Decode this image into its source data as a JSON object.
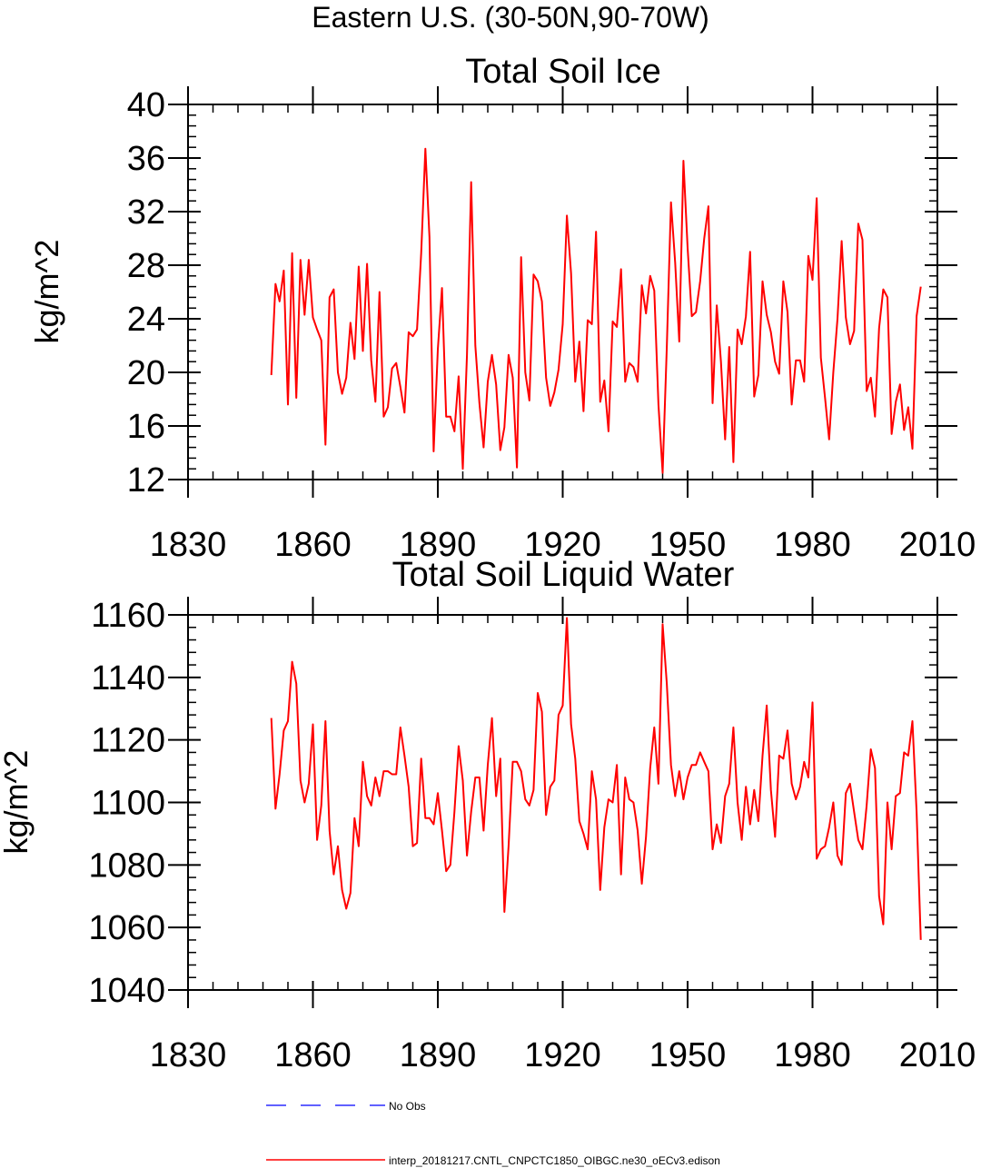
{
  "figure_title": "Eastern U.S. (30-50N,90-70W)",
  "legend": {
    "obs_label": "No Obs",
    "obs_color": "#2b2bff",
    "model_label": "interp_20181217.CNTL_CNPCTC1850_OIBGC.ne30_oECv3.edison",
    "model_color": "#ff0000"
  },
  "chart_data": [
    {
      "type": "line",
      "title": "Total Soil Ice",
      "ylabel": "kg/m^2",
      "xlabel": "",
      "xlim": [
        1830,
        2010
      ],
      "ylim": [
        12,
        40
      ],
      "xticks": [
        1830,
        1860,
        1890,
        1920,
        1950,
        1980,
        2010
      ],
      "yticks": [
        12,
        16,
        20,
        24,
        28,
        32,
        36,
        40
      ],
      "series": [
        {
          "name": "interp_20181217.CNTL_CNPCTC1850_OIBGC.ne30_oECv3.edison",
          "color": "#ff0000",
          "x_start": 1850,
          "x_step": 1,
          "values": [
            19.8,
            26.6,
            25.3,
            27.6,
            17.6,
            28.9,
            18.1,
            28.4,
            24.3,
            28.4,
            24.1,
            23.2,
            22.4,
            14.6,
            25.6,
            26.2,
            20.0,
            18.4,
            19.6,
            23.7,
            21.0,
            27.9,
            21.6,
            28.1,
            20.9,
            17.8,
            26.0,
            16.7,
            17.4,
            20.3,
            20.7,
            18.9,
            17.0,
            23.0,
            22.7,
            23.2,
            28.9,
            36.7,
            30.1,
            14.1,
            21.7,
            26.3,
            16.7,
            16.7,
            15.6,
            19.7,
            12.8,
            21.3,
            34.2,
            22.0,
            17.7,
            14.4,
            19.3,
            21.3,
            19.1,
            14.2,
            15.9,
            21.3,
            19.6,
            12.9,
            28.6,
            20.0,
            17.9,
            27.3,
            26.8,
            25.3,
            19.6,
            17.5,
            18.5,
            20.2,
            23.6,
            31.7,
            27.4,
            19.3,
            22.3,
            17.1,
            23.9,
            23.6,
            30.5,
            17.8,
            19.4,
            15.6,
            23.8,
            23.4,
            27.7,
            19.3,
            20.7,
            20.4,
            19.3,
            26.5,
            24.4,
            27.2,
            26.1,
            17.6,
            12.5,
            21.9,
            32.7,
            28.2,
            22.3,
            35.8,
            29.3,
            24.2,
            24.5,
            26.8,
            30.0,
            32.4,
            17.7,
            25.0,
            20.8,
            15.0,
            21.9,
            13.3,
            23.2,
            22.1,
            24.2,
            29.0,
            18.2,
            19.8,
            26.8,
            24.3,
            23.0,
            20.8,
            19.9,
            26.8,
            24.5,
            17.6,
            20.9,
            20.9,
            19.3,
            28.7,
            26.9,
            33.0,
            21.1,
            18.1,
            15.0,
            20.0,
            24.0,
            29.8,
            24.1,
            22.1,
            23.1,
            31.1,
            29.9,
            18.6,
            19.6,
            16.7,
            23.3,
            26.2,
            25.6,
            15.4,
            17.8,
            19.1,
            15.7,
            17.4,
            14.3,
            24.2,
            26.4
          ]
        }
      ]
    },
    {
      "type": "line",
      "title": "Total Soil Liquid Water",
      "ylabel": "kg/m^2",
      "xlabel": "",
      "xlim": [
        1830,
        2010
      ],
      "ylim": [
        1040,
        1160
      ],
      "xticks": [
        1830,
        1860,
        1890,
        1920,
        1950,
        1980,
        2010
      ],
      "yticks": [
        1040,
        1060,
        1080,
        1100,
        1120,
        1140,
        1160
      ],
      "series": [
        {
          "name": "interp_20181217.CNTL_CNPCTC1850_OIBGC.ne30_oECv3.edison",
          "color": "#ff0000",
          "x_start": 1850,
          "x_step": 1,
          "values": [
            1127,
            1098,
            1109,
            1123,
            1126,
            1145,
            1138,
            1107,
            1100,
            1106,
            1125,
            1088,
            1099,
            1126,
            1091,
            1077,
            1086,
            1072,
            1066,
            1071,
            1095,
            1086,
            1113,
            1102,
            1099,
            1108,
            1102,
            1110,
            1110,
            1109,
            1109,
            1124,
            1115,
            1105,
            1086,
            1087,
            1114,
            1095,
            1095,
            1093,
            1103,
            1091,
            1078,
            1080,
            1097,
            1118,
            1107,
            1083,
            1097,
            1108,
            1108,
            1091,
            1112,
            1127,
            1102,
            1114,
            1065,
            1086,
            1113,
            1113,
            1110,
            1101,
            1099,
            1104,
            1135,
            1129,
            1096,
            1105,
            1107,
            1128,
            1131,
            1159,
            1125,
            1114,
            1094,
            1090,
            1085,
            1110,
            1101,
            1072,
            1092,
            1101,
            1100,
            1112,
            1077,
            1108,
            1101,
            1100,
            1091,
            1074,
            1089,
            1111,
            1124,
            1106,
            1157,
            1138,
            1112,
            1102,
            1110,
            1101,
            1108,
            1112,
            1112,
            1116,
            1113,
            1110,
            1085,
            1093,
            1087,
            1102,
            1106,
            1124,
            1100,
            1088,
            1105,
            1093,
            1104,
            1094,
            1115,
            1131,
            1104,
            1089,
            1115,
            1114,
            1123,
            1106,
            1101,
            1105,
            1113,
            1108,
            1132,
            1082,
            1085,
            1086,
            1092,
            1100,
            1083,
            1080,
            1103,
            1106,
            1097,
            1088,
            1085,
            1099,
            1117,
            1111,
            1070,
            1061,
            1100,
            1085,
            1102,
            1103,
            1116,
            1115,
            1126,
            1097,
            1056
          ]
        }
      ]
    }
  ]
}
